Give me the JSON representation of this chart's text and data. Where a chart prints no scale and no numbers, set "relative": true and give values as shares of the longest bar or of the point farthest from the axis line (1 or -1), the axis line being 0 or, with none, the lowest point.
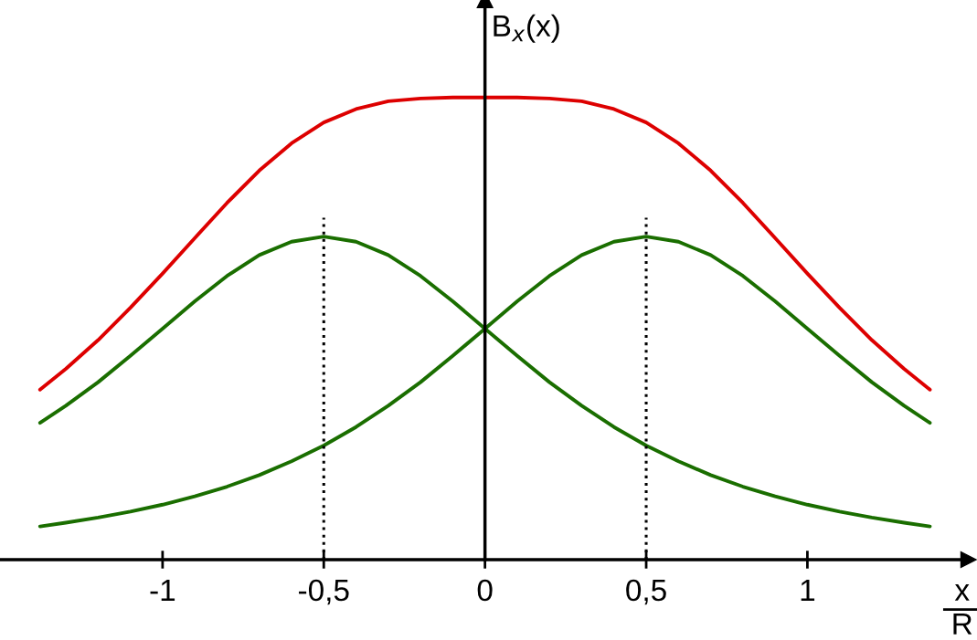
{
  "chart_data": {
    "type": "line",
    "relative": true,
    "xlabel": "x\nR",
    "ylabel": "B$_{x}$(x)",
    "x": [
      -1.38,
      -1.3,
      -1.2,
      -1.1,
      -1.0,
      -0.9,
      -0.8,
      -0.7,
      -0.6,
      -0.5,
      -0.4,
      -0.3,
      -0.2,
      -0.1,
      0,
      0.1,
      0.2,
      0.3,
      0.4,
      0.5,
      0.6,
      0.7,
      0.8,
      0.9,
      1.0,
      1.1,
      1.2,
      1.3,
      1.38
    ],
    "series": [
      {
        "color": "#dd0000",
        "values": [
          0.368,
          0.413,
          0.475,
          0.545,
          0.619,
          0.696,
          0.772,
          0.842,
          0.901,
          0.946,
          0.975,
          0.992,
          0.998,
          1.0,
          1.0,
          1.0,
          0.998,
          0.992,
          0.975,
          0.946,
          0.901,
          0.842,
          0.772,
          0.696,
          0.619,
          0.545,
          0.475,
          0.413,
          0.368
        ]
      },
      {
        "color": "#1a6e00",
        "values": [
          0.296,
          0.333,
          0.384,
          0.441,
          0.5,
          0.559,
          0.614,
          0.659,
          0.688,
          0.699,
          0.688,
          0.659,
          0.614,
          0.559,
          0.5,
          0.441,
          0.384,
          0.333,
          0.287,
          0.247,
          0.213,
          0.183,
          0.158,
          0.137,
          0.119,
          0.104,
          0.091,
          0.08,
          0.072
        ]
      },
      {
        "color": "#1a6e00",
        "values": [
          0.072,
          0.08,
          0.091,
          0.104,
          0.119,
          0.137,
          0.158,
          0.183,
          0.213,
          0.247,
          0.287,
          0.333,
          0.384,
          0.441,
          0.5,
          0.559,
          0.614,
          0.659,
          0.688,
          0.699,
          0.688,
          0.659,
          0.614,
          0.559,
          0.5,
          0.441,
          0.384,
          0.333,
          0.296
        ]
      }
    ],
    "xlim": [
      -1.5,
      1.5
    ],
    "xticks": [
      {
        "value": -1,
        "label": "-1"
      },
      {
        "value": -0.5,
        "label": "-0,5"
      },
      {
        "value": 0,
        "label": "0"
      },
      {
        "value": 0.5,
        "label": "0,5"
      },
      {
        "value": 1,
        "label": "1"
      }
    ],
    "ref_lines": [
      {
        "axis": "x",
        "value": -0.5,
        "line_style": "dotted",
        "color": "#000000"
      },
      {
        "axis": "x",
        "value": 0.5,
        "line_style": "dotted",
        "color": "#000000"
      }
    ],
    "grid": false,
    "legend": false,
    "marker": "none",
    "line_style": "solid"
  }
}
